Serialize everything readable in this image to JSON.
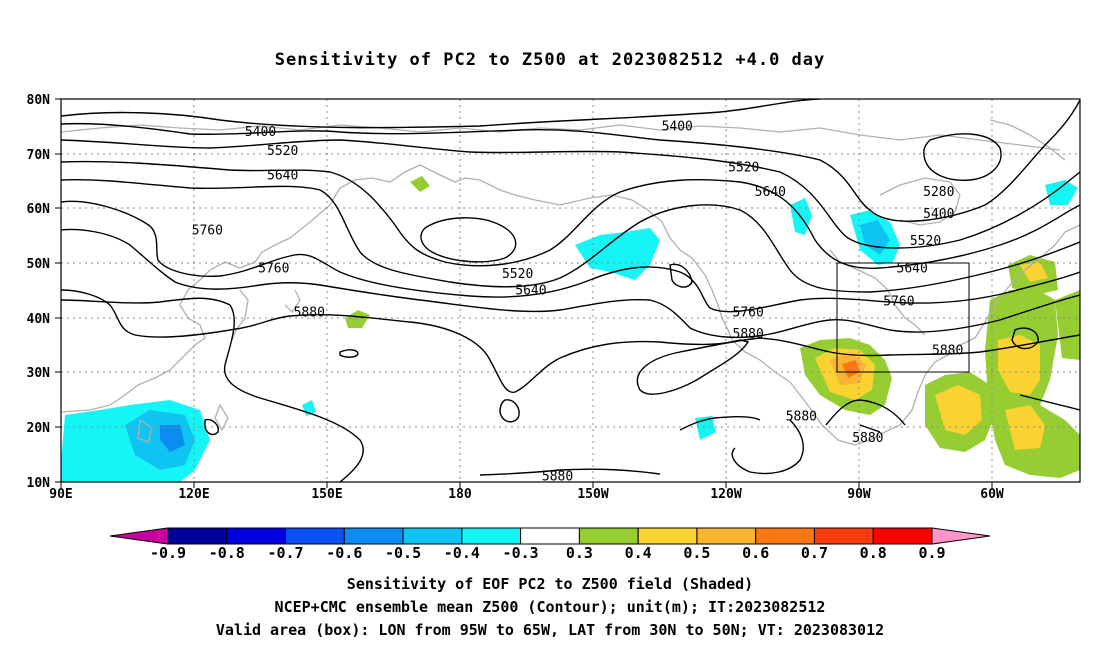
{
  "title": "Sensitivity of PC2 to Z500 at 2023082512 +4.0 day",
  "lat_labels": [
    "80N",
    "70N",
    "60N",
    "50N",
    "40N",
    "30N",
    "20N",
    "10N"
  ],
  "lon_labels": [
    "90E",
    "120E",
    "150E",
    "180",
    "150W",
    "120W",
    "90W",
    "60W"
  ],
  "contour_labels": [
    {
      "text": "5400",
      "lon": 135,
      "lat": 74
    },
    {
      "text": "5400",
      "lon": 229,
      "lat": 75
    },
    {
      "text": "5520",
      "lon": 140,
      "lat": 70.5
    },
    {
      "text": "5520",
      "lon": 244,
      "lat": 67.5
    },
    {
      "text": "5640",
      "lon": 140,
      "lat": 66
    },
    {
      "text": "5640",
      "lon": 250,
      "lat": 63
    },
    {
      "text": "5760",
      "lon": 123,
      "lat": 56
    },
    {
      "text": "5760",
      "lon": 138,
      "lat": 49
    },
    {
      "text": "5880",
      "lon": 146,
      "lat": 41
    },
    {
      "text": "5520",
      "lon": 193,
      "lat": 48
    },
    {
      "text": "5640",
      "lon": 196,
      "lat": 45
    },
    {
      "text": "5760",
      "lon": 245,
      "lat": 41
    },
    {
      "text": "5880",
      "lon": 245,
      "lat": 37
    },
    {
      "text": "5280",
      "lon": 288,
      "lat": 63
    },
    {
      "text": "5400",
      "lon": 288,
      "lat": 59
    },
    {
      "text": "5520",
      "lon": 285,
      "lat": 54
    },
    {
      "text": "5640",
      "lon": 282,
      "lat": 49
    },
    {
      "text": "5760",
      "lon": 279,
      "lat": 43
    },
    {
      "text": "5880",
      "lon": 290,
      "lat": 34
    },
    {
      "text": "5880",
      "lon": 257,
      "lat": 22
    },
    {
      "text": "5880",
      "lon": 272,
      "lat": 18
    },
    {
      "text": "5880",
      "lon": 202,
      "lat": 11
    }
  ],
  "valid_box": {
    "lon_min": 265,
    "lon_max": 295,
    "lat_min": 30,
    "lat_max": 50
  },
  "colorbar": {
    "labels": [
      "-0.9",
      "-0.8",
      "-0.7",
      "-0.6",
      "-0.5",
      "-0.4",
      "-0.3",
      "0.3",
      "0.4",
      "0.5",
      "0.6",
      "0.7",
      "0.8",
      "0.9"
    ],
    "colors": [
      "#00009b",
      "#0000e1",
      "#0a50f5",
      "#0a8cf0",
      "#10c4f2",
      "#16f5f5",
      "#ffffff",
      "#96cd32",
      "#fad232",
      "#fab432",
      "#fa7814",
      "#fa3c0a",
      "#ff0000"
    ],
    "low_end": "#c800a0",
    "high_end": "#ff96c8"
  },
  "captions": [
    "Sensitivity of EOF PC2 to Z500 field (Shaded)",
    "NCEP+CMC ensemble mean Z500 (Contour); unit(m); IT:2023082512",
    "Valid area (box): LON from 95W to 65W, LAT from 30N to 50N; VT: 2023083012"
  ]
}
